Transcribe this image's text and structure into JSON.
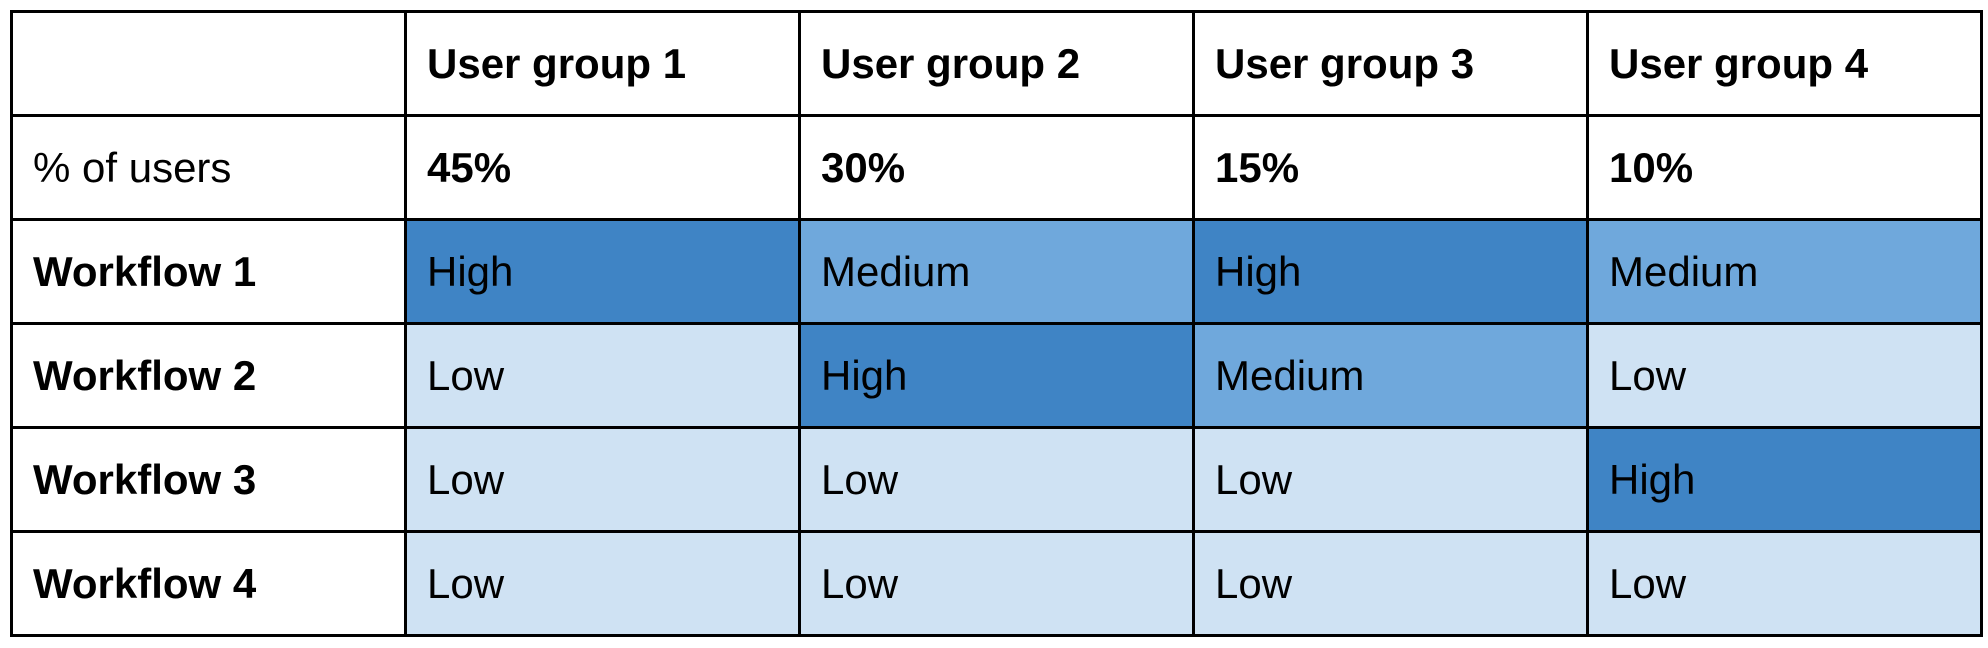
{
  "table": {
    "columns": [
      "",
      "User group 1",
      "User group 2",
      "User group 3",
      "User group 4"
    ],
    "share_row": {
      "label": "% of users",
      "values": [
        "45%",
        "30%",
        "15%",
        "10%"
      ]
    },
    "rows": [
      {
        "label": "Workflow 1",
        "cells": [
          "High",
          "Medium",
          "High",
          "Medium"
        ]
      },
      {
        "label": "Workflow 2",
        "cells": [
          "Low",
          "High",
          "Medium",
          "Low"
        ]
      },
      {
        "label": "Workflow 3",
        "cells": [
          "Low",
          "Low",
          "Low",
          "High"
        ]
      },
      {
        "label": "Workflow 4",
        "cells": [
          "Low",
          "Low",
          "Low",
          "Low"
        ]
      }
    ]
  },
  "level_colors": {
    "High": "#3f84c5",
    "Medium": "#6fa8dc",
    "Low": "#cfe2f3"
  }
}
